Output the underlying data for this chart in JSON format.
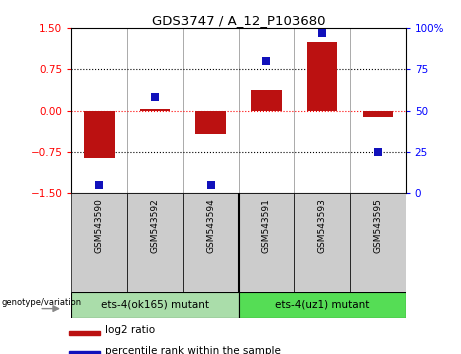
{
  "title": "GDS3747 / A_12_P103680",
  "samples": [
    "GSM543590",
    "GSM543592",
    "GSM543594",
    "GSM543591",
    "GSM543593",
    "GSM543595"
  ],
  "log2_ratio": [
    -0.87,
    0.03,
    -0.43,
    0.37,
    1.25,
    -0.12
  ],
  "percentile_rank": [
    5,
    58,
    5,
    80,
    97,
    25
  ],
  "bar_color": "#bb1111",
  "dot_color": "#1111bb",
  "left_ylim": [
    -1.5,
    1.5
  ],
  "right_ylim": [
    0,
    100
  ],
  "left_yticks": [
    -1.5,
    -0.75,
    0,
    0.75,
    1.5
  ],
  "right_yticks": [
    0,
    25,
    50,
    75,
    100
  ],
  "hline_values": [
    -0.75,
    0,
    0.75
  ],
  "groups": [
    {
      "label": "ets-4(ok165) mutant",
      "indices": [
        0,
        1,
        2
      ],
      "color": "#aaddaa"
    },
    {
      "label": "ets-4(uz1) mutant",
      "indices": [
        3,
        4,
        5
      ],
      "color": "#55dd55"
    }
  ],
  "genotype_label": "genotype/variation",
  "legend_log2": "log2 ratio",
  "legend_percentile": "percentile rank within the sample",
  "bar_width": 0.55,
  "dot_size": 40,
  "sample_box_color": "#cccccc",
  "vline_color": "#888888"
}
